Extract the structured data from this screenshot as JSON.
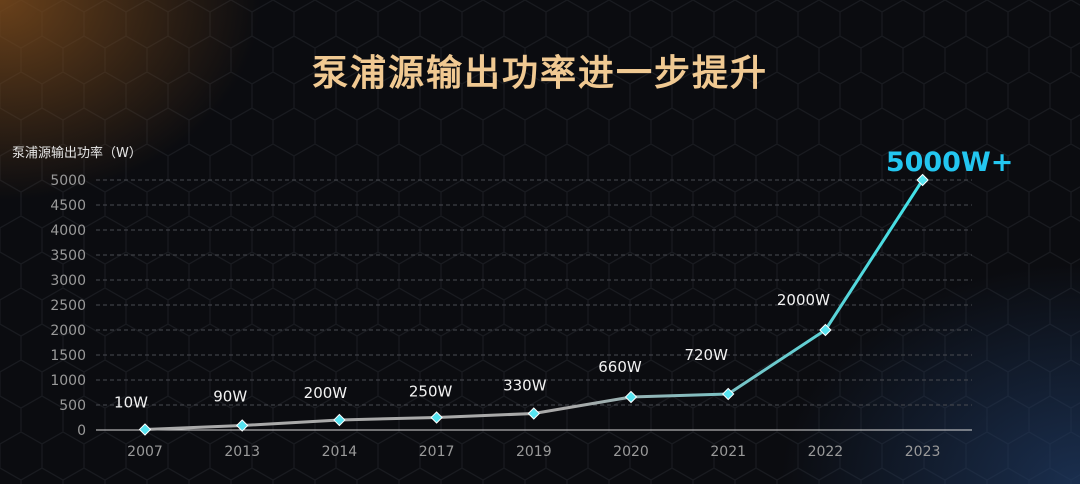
{
  "chart_data": {
    "type": "line",
    "title": "泵浦源输出功率进一步提升",
    "ylabel": "泵浦源输出功率（W）",
    "xlabel": "",
    "categories": [
      "2007",
      "2013",
      "2014",
      "2017",
      "2019",
      "2020",
      "2021",
      "2022",
      "2023"
    ],
    "values": [
      10,
      90,
      200,
      250,
      330,
      660,
      720,
      2000,
      5000
    ],
    "data_labels": [
      "10W",
      "90W",
      "200W",
      "250W",
      "330W",
      "660W",
      "720W",
      "2000W",
      "5000W+"
    ],
    "yticks": [
      "0",
      "500",
      "1000",
      "1500",
      "2000",
      "2500",
      "3000",
      "3500",
      "4000",
      "4500",
      "5000"
    ],
    "ylim": [
      0,
      5000
    ],
    "grid": true,
    "legend": "none",
    "colors": {
      "title": "#f0c992",
      "line_start": "#a9a9a9",
      "line_end": "#3fe2e8",
      "marker": "#56e3f0",
      "highlight_label": "#23c6f0"
    }
  }
}
